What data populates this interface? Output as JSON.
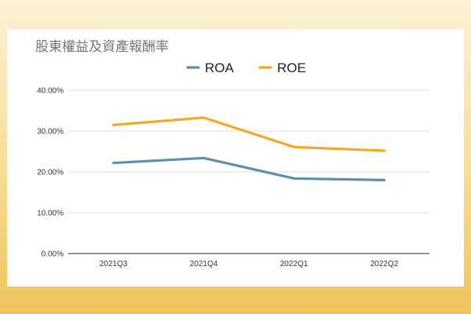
{
  "chart_data": {
    "type": "line",
    "title": "股東權益及資產報酬率",
    "categories": [
      "2021Q3",
      "2021Q4",
      "2022Q1",
      "2022Q2"
    ],
    "yticks": [
      "0.00%",
      "10.00%",
      "20.00%",
      "30.00%",
      "40.00%"
    ],
    "ylim": [
      0,
      40
    ],
    "grid": true,
    "legend_position": "top-center",
    "series": [
      {
        "name": "ROA",
        "color": "#5b8fad",
        "values": [
          22.2,
          23.4,
          18.4,
          18.0
        ]
      },
      {
        "name": "ROE",
        "color": "#f5a623",
        "values": [
          31.5,
          33.3,
          26.1,
          25.2
        ]
      }
    ]
  }
}
